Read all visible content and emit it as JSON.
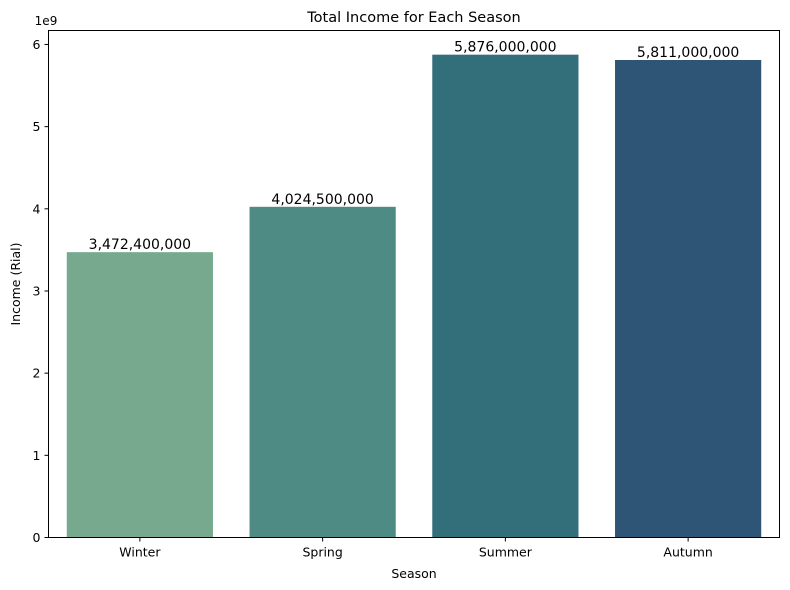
{
  "chart_data": {
    "type": "bar",
    "title": "Total Income for Each Season",
    "xlabel": "Season",
    "ylabel": "Income (Rial)",
    "y_offset_label": "1e9",
    "categories": [
      "Winter",
      "Spring",
      "Summer",
      "Autumn"
    ],
    "values": [
      3472400000,
      4024500000,
      5876000000,
      5811000000
    ],
    "value_labels": [
      "3,472,400,000",
      "4,024,500,000",
      "5,876,000,000",
      "5,811,000,000"
    ],
    "colors": [
      "#76a98e",
      "#4e8b84",
      "#336e7b",
      "#2e5476"
    ],
    "ylim": [
      0,
      6170000000
    ],
    "yticks": [
      0,
      1,
      2,
      3,
      4,
      5,
      6
    ],
    "ytick_scale": 1000000000,
    "grid": false,
    "legend": "none"
  }
}
